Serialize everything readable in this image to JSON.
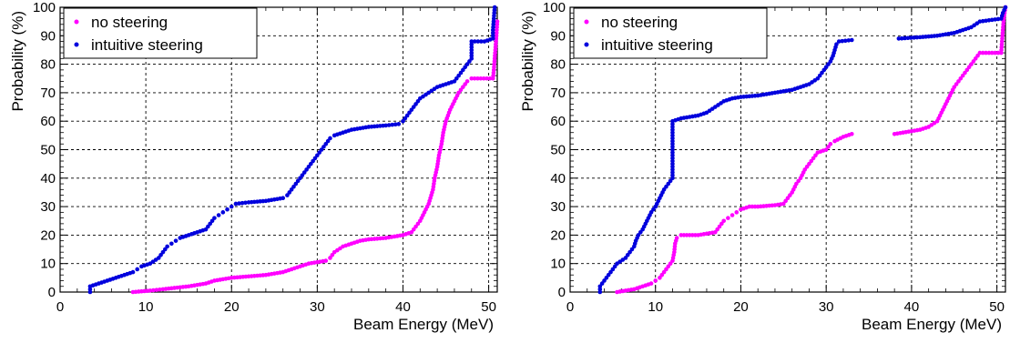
{
  "colors": {
    "no_steering": "#ff00ff",
    "intuitive_steering": "#0000dd"
  },
  "chart_data": [
    {
      "type": "scatter",
      "title": "",
      "xlabel": "Beam Energy (MeV)",
      "ylabel": "Probability (%)",
      "xlim": [
        0,
        51
      ],
      "ylim": [
        0,
        100
      ],
      "xticks": [
        "0",
        "10",
        "20",
        "30",
        "40",
        "50"
      ],
      "yticks": [
        "0",
        "10",
        "20",
        "30",
        "40",
        "50",
        "60",
        "70",
        "80",
        "90",
        "100"
      ],
      "grid": true,
      "legend_position": "top-left",
      "series": [
        {
          "name": "no steering",
          "color": "#ff00ff",
          "points": [
            [
              8.5,
              0
            ],
            [
              10.5,
              0.5
            ],
            [
              12,
              1
            ],
            [
              15,
              2
            ],
            [
              17,
              3
            ],
            [
              18,
              4
            ],
            [
              19,
              4.5
            ],
            [
              20,
              5
            ],
            [
              22,
              5.5
            ],
            [
              24,
              6
            ],
            [
              26,
              7
            ],
            [
              28,
              9
            ],
            [
              29,
              10
            ],
            [
              30,
              10.5
            ],
            [
              31,
              11
            ],
            [
              31.5,
              12
            ],
            [
              32,
              14
            ],
            [
              33,
              16
            ],
            [
              34,
              17
            ],
            [
              35,
              18
            ],
            [
              36,
              18.5
            ],
            [
              38,
              19
            ],
            [
              40,
              20
            ],
            [
              41,
              21
            ],
            [
              41.5,
              23
            ],
            [
              42,
              25
            ],
            [
              42.5,
              28
            ],
            [
              43,
              31
            ],
            [
              43.2,
              33
            ],
            [
              43.5,
              36
            ],
            [
              43.7,
              40
            ],
            [
              44,
              44
            ],
            [
              44.2,
              48
            ],
            [
              44.5,
              52
            ],
            [
              44.7,
              56
            ],
            [
              45,
              60
            ],
            [
              45.5,
              64
            ],
            [
              46,
              67
            ],
            [
              46.5,
              70
            ],
            [
              47,
              72
            ],
            [
              47.5,
              74
            ],
            [
              48,
              75
            ],
            [
              50.5,
              75
            ],
            [
              50.6,
              78
            ],
            [
              50.7,
              82
            ],
            [
              50.8,
              86
            ],
            [
              50.9,
              90
            ],
            [
              51,
              95
            ]
          ]
        },
        {
          "name": "intuitive steering",
          "color": "#0000dd",
          "points": [
            [
              3.5,
              0
            ],
            [
              3.5,
              2
            ],
            [
              4.5,
              3
            ],
            [
              5.5,
              4
            ],
            [
              6.5,
              5
            ],
            [
              7.5,
              6
            ],
            [
              8.5,
              7
            ],
            [
              9,
              8
            ],
            [
              9.5,
              9
            ],
            [
              10.5,
              10
            ],
            [
              11.5,
              12
            ],
            [
              12,
              14
            ],
            [
              12.5,
              16
            ],
            [
              13,
              17
            ],
            [
              13.5,
              18
            ],
            [
              14,
              19
            ],
            [
              15,
              20
            ],
            [
              16,
              21
            ],
            [
              17,
              22
            ],
            [
              17.5,
              24
            ],
            [
              18,
              26
            ],
            [
              18.5,
              27
            ],
            [
              19,
              28
            ],
            [
              19.5,
              29
            ],
            [
              20,
              30
            ],
            [
              20.5,
              31
            ],
            [
              22,
              31.5
            ],
            [
              24,
              32
            ],
            [
              25,
              32.5
            ],
            [
              26,
              33
            ],
            [
              26.5,
              34
            ],
            [
              27,
              36
            ],
            [
              27.5,
              38
            ],
            [
              28,
              40
            ],
            [
              28.5,
              42
            ],
            [
              29,
              44
            ],
            [
              29.5,
              46
            ],
            [
              30,
              48
            ],
            [
              30.5,
              50
            ],
            [
              31,
              52
            ],
            [
              31.5,
              54
            ],
            [
              32,
              55
            ],
            [
              33,
              56
            ],
            [
              34,
              57
            ],
            [
              36,
              58
            ],
            [
              38,
              58.5
            ],
            [
              39.5,
              59
            ],
            [
              40,
              60
            ],
            [
              40.5,
              62
            ],
            [
              41,
              64
            ],
            [
              41.5,
              66
            ],
            [
              42,
              68
            ],
            [
              43,
              70
            ],
            [
              44,
              72
            ],
            [
              45,
              73
            ],
            [
              46,
              74
            ],
            [
              46.5,
              76
            ],
            [
              47,
              78
            ],
            [
              47.5,
              80
            ],
            [
              48,
              82
            ],
            [
              48,
              84
            ],
            [
              48,
              86
            ],
            [
              48,
              88
            ],
            [
              49.5,
              88
            ],
            [
              50.5,
              89
            ],
            [
              50.5,
              92
            ],
            [
              50.6,
              96
            ],
            [
              50.7,
              100
            ]
          ]
        }
      ]
    },
    {
      "type": "scatter",
      "title": "",
      "xlabel": "Beam Energy (MeV)",
      "ylabel": "Probability (%)",
      "xlim": [
        0,
        51
      ],
      "ylim": [
        0,
        100
      ],
      "xticks": [
        "0",
        "10",
        "20",
        "30",
        "40",
        "50"
      ],
      "yticks": [
        "0",
        "10",
        "20",
        "30",
        "40",
        "50",
        "60",
        "70",
        "80",
        "90",
        "100"
      ],
      "grid": true,
      "legend_position": "top-left",
      "series": [
        {
          "name": "no steering",
          "color": "#ff00ff",
          "points": [
            [
              5.5,
              0
            ],
            [
              6.5,
              0.5
            ],
            [
              7.5,
              1
            ],
            [
              8.5,
              2
            ],
            [
              9.5,
              3
            ],
            [
              10,
              4
            ],
            [
              10.5,
              5
            ],
            [
              11,
              7
            ],
            [
              11.5,
              9
            ],
            [
              12,
              11
            ],
            [
              12.2,
              14
            ],
            [
              12.3,
              17
            ],
            [
              12.5,
              19
            ],
            [
              13,
              20
            ],
            [
              14,
              20
            ],
            [
              15,
              20
            ],
            [
              16,
              20.5
            ],
            [
              17,
              21
            ],
            [
              17.5,
              23
            ],
            [
              18,
              25
            ],
            [
              18.5,
              26
            ],
            [
              19,
              27
            ],
            [
              19.5,
              28
            ],
            [
              20,
              29
            ],
            [
              21,
              30
            ],
            [
              22,
              30
            ],
            [
              24,
              30.5
            ],
            [
              25,
              31
            ],
            [
              25.5,
              33
            ],
            [
              26,
              35
            ],
            [
              26.5,
              38
            ],
            [
              27,
              40
            ],
            [
              27.5,
              43
            ],
            [
              28,
              45
            ],
            [
              28.5,
              47
            ],
            [
              29,
              49
            ],
            [
              30,
              50
            ],
            [
              30.5,
              52
            ],
            [
              31,
              53
            ],
            [
              32,
              54.5
            ],
            [
              33,
              55.5
            ],
            [
              38,
              55.5
            ],
            [
              39,
              56
            ],
            [
              40,
              56.5
            ],
            [
              41,
              57
            ],
            [
              42,
              58
            ],
            [
              43,
              60
            ],
            [
              43.5,
              63
            ],
            [
              44,
              66
            ],
            [
              44.5,
              69
            ],
            [
              45,
              72
            ],
            [
              45.5,
              74
            ],
            [
              46,
              76
            ],
            [
              46.5,
              78
            ],
            [
              47,
              80
            ],
            [
              47.5,
              82
            ],
            [
              48,
              84
            ],
            [
              50.5,
              84
            ],
            [
              50.6,
              88
            ],
            [
              50.7,
              92
            ],
            [
              50.8,
              96
            ],
            [
              51,
              100
            ]
          ]
        },
        {
          "name": "intuitive steering",
          "color": "#0000dd",
          "points": [
            [
              3.5,
              0
            ],
            [
              3.5,
              2
            ],
            [
              4,
              4
            ],
            [
              4.5,
              6
            ],
            [
              5,
              8
            ],
            [
              5.5,
              10
            ],
            [
              6.5,
              12
            ],
            [
              7,
              14
            ],
            [
              7.5,
              16
            ],
            [
              7.7,
              18
            ],
            [
              8,
              20
            ],
            [
              8.5,
              22
            ],
            [
              9,
              25
            ],
            [
              9.5,
              28
            ],
            [
              10,
              30
            ],
            [
              10.5,
              33
            ],
            [
              11,
              36
            ],
            [
              11.5,
              38
            ],
            [
              12,
              40
            ],
            [
              12,
              43
            ],
            [
              12,
              46
            ],
            [
              12,
              50
            ],
            [
              12,
              53
            ],
            [
              12,
              56
            ],
            [
              12,
              60
            ],
            [
              13,
              61
            ],
            [
              14,
              61.5
            ],
            [
              15,
              62
            ],
            [
              16,
              63
            ],
            [
              17,
              65
            ],
            [
              18,
              67
            ],
            [
              19,
              68
            ],
            [
              20,
              68.5
            ],
            [
              22,
              69
            ],
            [
              24,
              70
            ],
            [
              26,
              71
            ],
            [
              27,
              72
            ],
            [
              28,
              73
            ],
            [
              29,
              75
            ],
            [
              29.5,
              77
            ],
            [
              30,
              79
            ],
            [
              30.5,
              81
            ],
            [
              30.8,
              83
            ],
            [
              31,
              85
            ],
            [
              31.2,
              87
            ],
            [
              31.5,
              88
            ],
            [
              33,
              88.5
            ],
            [
              38.5,
              89
            ],
            [
              41,
              89.5
            ],
            [
              43,
              90
            ],
            [
              45,
              91
            ],
            [
              47,
              93
            ],
            [
              48,
              95
            ],
            [
              50.5,
              96
            ],
            [
              50.7,
              98
            ],
            [
              51,
              100
            ]
          ]
        }
      ]
    }
  ]
}
